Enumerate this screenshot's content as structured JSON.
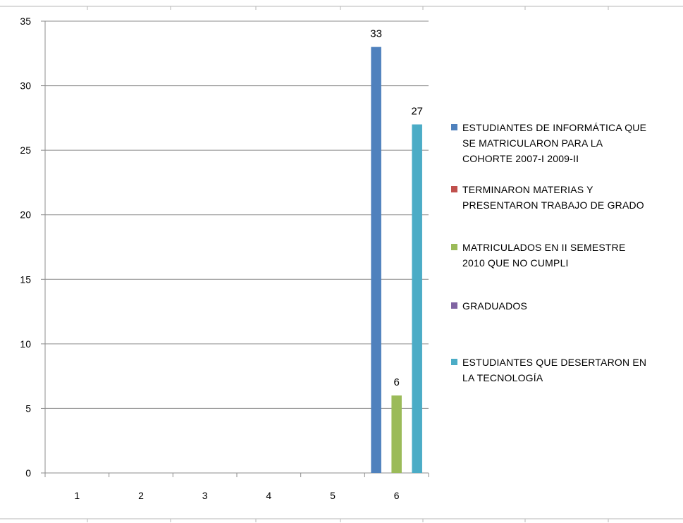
{
  "chart_data": {
    "type": "bar",
    "categories": [
      "1",
      "2",
      "3",
      "4",
      "5",
      "6"
    ],
    "ylim": [
      0,
      35
    ],
    "yticks": [
      0,
      5,
      10,
      15,
      20,
      25,
      30,
      35
    ],
    "grid": true,
    "legend_position": "right",
    "series": [
      {
        "name": "ESTUDIANTES DE INFORMÁTICA QUE SE MATRICULARON PARA LA COHORTE 2007-I  2009-II",
        "color": "#4F81BD",
        "values": [
          0,
          0,
          0,
          0,
          0,
          33
        ],
        "data_labels": [
          "",
          "",
          "",
          "",
          "",
          "33"
        ]
      },
      {
        "name": "TERMINARON  MATERIAS Y PRESENTARON TRABAJO DE GRADO",
        "color": "#C0504D",
        "values": [
          0,
          0,
          0,
          0,
          0,
          0
        ],
        "data_labels": [
          "",
          "",
          "",
          "",
          "",
          ""
        ]
      },
      {
        "name": "MATRICULADOS  EN II SEMESTRE 2010 QUE NO CUMPLI",
        "color": "#9BBB59",
        "values": [
          0,
          0,
          0,
          0,
          0,
          6
        ],
        "data_labels": [
          "",
          "",
          "",
          "",
          "",
          "6"
        ]
      },
      {
        "name": "GRADUADOS",
        "color": "#8064A2",
        "values": [
          0,
          0,
          0,
          0,
          0,
          0
        ],
        "data_labels": [
          "",
          "",
          "",
          "",
          "",
          ""
        ]
      },
      {
        "name": "ESTUDIANTES QUE DESERTARON EN LA TECNOLOGÍA",
        "color": "#4BACC6",
        "values": [
          0,
          0,
          0,
          0,
          0,
          27
        ],
        "data_labels": [
          "",
          "",
          "",
          "",
          "",
          "27"
        ]
      }
    ]
  },
  "legend": {
    "items": [
      {
        "label": "ESTUDIANTES DE INFORMÁTICA QUE\nSE MATRICULARON PARA LA\nCOHORTE 2007-I  2009-II",
        "color": "#4F81BD"
      },
      {
        "label": "TERMINARON  MATERIAS Y\nPRESENTARON TRABAJO DE GRADO",
        "color": "#C0504D"
      },
      {
        "label": "MATRICULADOS  EN II SEMESTRE\n2010 QUE NO CUMPLI",
        "color": "#9BBB59"
      },
      {
        "label": "GRADUADOS",
        "color": "#8064A2"
      },
      {
        "label": "ESTUDIANTES QUE DESERTARON EN\nLA TECNOLOGÍA",
        "color": "#4BACC6"
      }
    ]
  }
}
